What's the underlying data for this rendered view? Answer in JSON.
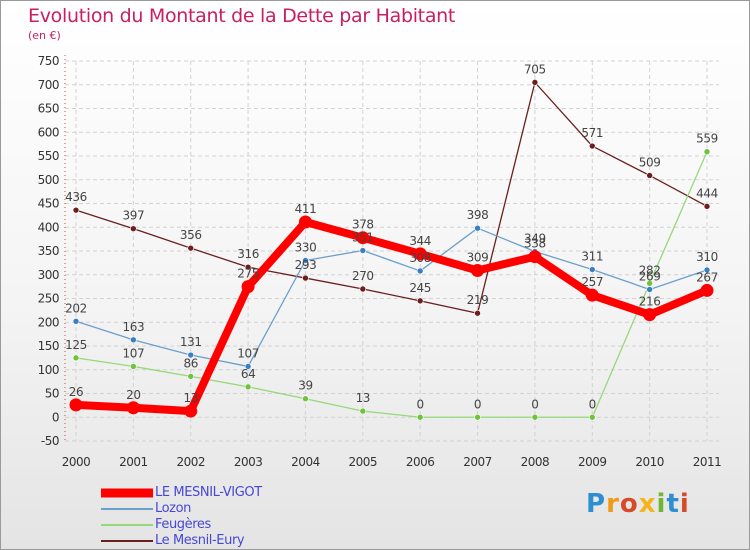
{
  "title": "Evolution du Montant de la Dette par Habitant",
  "subtitle": "(en €)",
  "logo_text": "Proxiti",
  "chart_data": {
    "type": "line",
    "x": [
      "2000",
      "2001",
      "2002",
      "2003",
      "2004",
      "2005",
      "2006",
      "2007",
      "2008",
      "2009",
      "2010",
      "2011"
    ],
    "ylim": [
      -50,
      750
    ],
    "yticks": [
      -50,
      0,
      50,
      100,
      150,
      200,
      250,
      300,
      350,
      400,
      450,
      500,
      550,
      600,
      650,
      700,
      750
    ],
    "grid": true,
    "legend_position": "bottom-left",
    "series": [
      {
        "name": "Le Mesnil-Eury",
        "color": "#6b1e1e",
        "values": [
          436,
          397,
          356,
          316,
          293,
          270,
          245,
          219,
          705,
          571,
          509,
          444
        ],
        "labels": [
          "436",
          "397",
          "356",
          "316",
          "293",
          "270",
          "245",
          "219",
          "705",
          "571",
          "509",
          "444"
        ]
      },
      {
        "name": "Feugères",
        "color": "#94d97a",
        "marker_color": "#6ec33a",
        "values": [
          125,
          107,
          86,
          64,
          39,
          13,
          0,
          0,
          0,
          0,
          282,
          559
        ],
        "labels": [
          "125",
          "107",
          "86",
          "64",
          "39",
          "13",
          "0",
          "0",
          "0",
          "0",
          "282",
          "559"
        ]
      },
      {
        "name": "Lozon",
        "color": "#6b9fcc",
        "marker_color": "#3a7fc0",
        "values": [
          202,
          163,
          131,
          107,
          330,
          351,
          308,
          398,
          349,
          311,
          269,
          310
        ],
        "labels": [
          "202",
          "163",
          "131",
          "107",
          "330",
          "351",
          "308",
          "398",
          "349",
          "311",
          "269",
          "310"
        ]
      },
      {
        "name": "LE MESNIL-VIGOT",
        "color": "#ff0000",
        "values": [
          26,
          20,
          13,
          275,
          411,
          378,
          344,
          309,
          338,
          257,
          216,
          267
        ],
        "labels": [
          "26",
          "20",
          "13",
          "275",
          "411",
          "378",
          "344",
          "309",
          "338",
          "257",
          "216",
          "267"
        ]
      }
    ]
  },
  "legend": [
    {
      "label": "LE MESNIL-VIGOT",
      "color": "#ff0000"
    },
    {
      "label": "Lozon",
      "color": "#6b9fcc"
    },
    {
      "label": "Feugères",
      "color": "#94d97a"
    },
    {
      "label": "Le Mesnil-Eury",
      "color": "#6b1e1e"
    }
  ]
}
